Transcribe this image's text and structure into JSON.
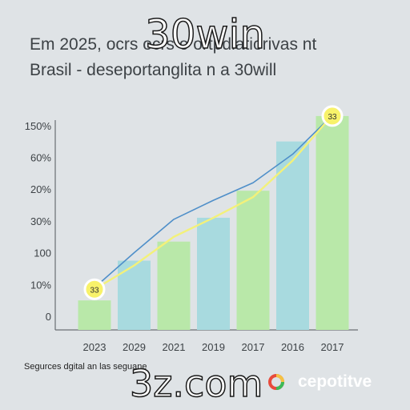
{
  "overlay": {
    "top_text": "30win",
    "bottom_text": "3z.com"
  },
  "headline": {
    "line1": "Em 2025, ocrs ocrs o ortpdiatiorivas nt",
    "line2": "Brasil - deseportanglita n a 30will"
  },
  "footer": {
    "text": "Segurces dgital an las seguane",
    "brand": "cepotitve"
  },
  "colors": {
    "background": "#dfe3e6",
    "bar_green": "#b9e8a9",
    "bar_teal": "#a8dadf",
    "trend_blue": "#4f8fc9",
    "trend_yellow": "#f3f17a",
    "marker_fill": "#f8f26a",
    "axis": "#6a6f73",
    "brand_icon": [
      "#e84b3c",
      "#f5c243",
      "#3dba57"
    ]
  },
  "chart_data": {
    "type": "bar",
    "categories": [
      "2023",
      "2029",
      "2021",
      "2019",
      "2017",
      "2016",
      "2017"
    ],
    "y_tick_labels": [
      "0",
      "10%",
      "100",
      "30%",
      "20%",
      "60%",
      "150%"
    ],
    "values": [
      0.5,
      1.75,
      2.35,
      3.1,
      3.95,
      5.5,
      6.3
    ],
    "bar_colors": [
      "#b9e8a9",
      "#a8dadf",
      "#b9e8a9",
      "#a8dadf",
      "#b9e8a9",
      "#a8dadf",
      "#b9e8a9"
    ],
    "series": [
      {
        "type": "line",
        "color": "#4f8fc9",
        "values": [
          0.9,
          2.0,
          3.05,
          3.65,
          4.2,
          5.1,
          6.3
        ]
      },
      {
        "type": "line",
        "color": "#f3f17a",
        "values": [
          0.85,
          1.6,
          2.5,
          3.1,
          3.75,
          4.9,
          6.3
        ]
      }
    ],
    "markers": [
      {
        "label": "33",
        "category_index": 0,
        "value": 0.85
      },
      {
        "label": "33",
        "category_index": 6,
        "value": 6.3
      }
    ],
    "ylim": [
      0,
      6
    ],
    "grid": false,
    "title": "",
    "xlabel": "",
    "ylabel": ""
  }
}
